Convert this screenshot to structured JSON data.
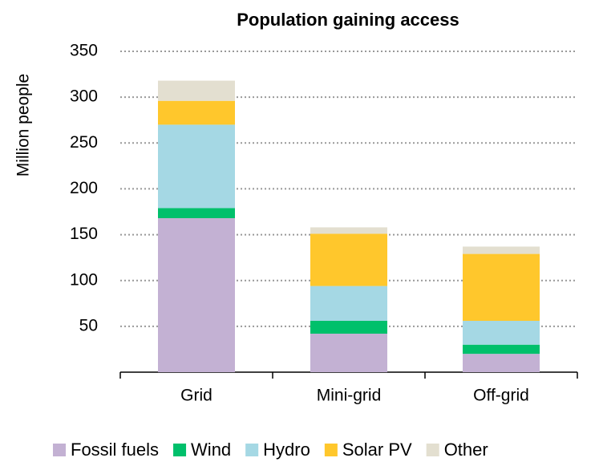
{
  "chart_data": {
    "type": "bar",
    "stacked": true,
    "title": "Population gaining access",
    "ylabel": "Million people",
    "categories": [
      "Grid",
      "Mini-grid",
      "Off-grid"
    ],
    "series": [
      {
        "name": "Fossil fuels",
        "color": "#c3b1d3",
        "values": [
          168,
          42,
          20
        ]
      },
      {
        "name": "Wind",
        "color": "#00c06b",
        "values": [
          11,
          14,
          10
        ]
      },
      {
        "name": "Hydro",
        "color": "#a5d8e4",
        "values": [
          91,
          38,
          26
        ]
      },
      {
        "name": "Solar PV",
        "color": "#ffc72c",
        "values": [
          26,
          57,
          73
        ]
      },
      {
        "name": "Other",
        "color": "#e3dfd0",
        "values": [
          22,
          7,
          8
        ]
      }
    ],
    "ylim": [
      0,
      350
    ],
    "yticks": [
      50,
      100,
      150,
      200,
      250,
      300,
      350
    ],
    "grid": true,
    "legend": "bottom"
  }
}
